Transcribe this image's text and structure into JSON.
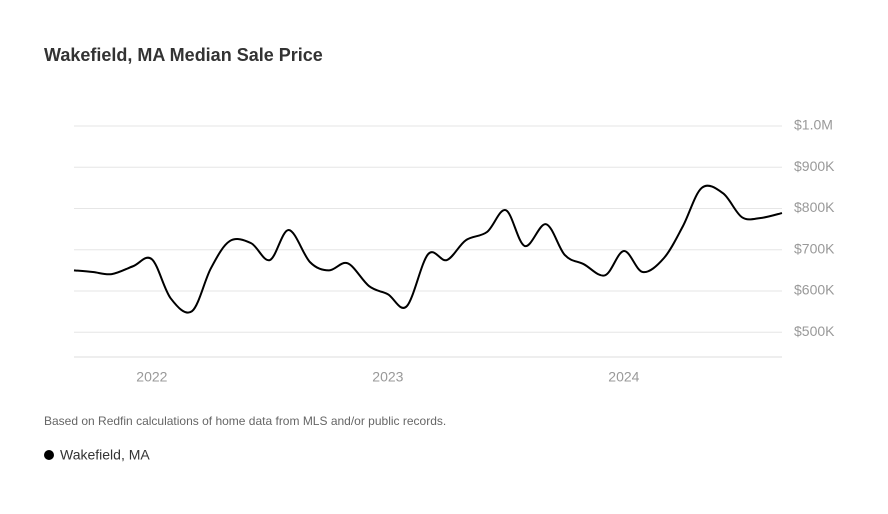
{
  "chart_data": {
    "type": "line",
    "title": "Wakefield, MA Median Sale Price",
    "note": "Based on Redfin calculations of home data from MLS and/or public records.",
    "x": [
      2021.67,
      2021.75,
      2021.83,
      2021.92,
      2022.0,
      2022.08,
      2022.17,
      2022.25,
      2022.33,
      2022.42,
      2022.5,
      2022.58,
      2022.67,
      2022.75,
      2022.83,
      2022.92,
      2023.0,
      2023.08,
      2023.17,
      2023.25,
      2023.33,
      2023.42,
      2023.5,
      2023.58,
      2023.67,
      2023.75,
      2023.83,
      2023.92,
      2024.0,
      2024.08,
      2024.17,
      2024.25,
      2024.33,
      2024.42,
      2024.5,
      2024.58,
      2024.67
    ],
    "series": [
      {
        "name": "Wakefield, MA",
        "color": "#000000",
        "values": [
          650000,
          646000,
          641000,
          660000,
          677000,
          582000,
          551000,
          655000,
          721000,
          716000,
          675000,
          748000,
          670000,
          650000,
          667000,
          612000,
          592000,
          563000,
          689000,
          675000,
          723000,
          743000,
          796000,
          709000,
          762000,
          687000,
          665000,
          638000,
          697000,
          646000,
          680000,
          757000,
          850000,
          837000,
          779000,
          777000,
          789000
        ]
      }
    ],
    "xlim": [
      2021.67,
      2024.67
    ],
    "xticks": [
      2022,
      2023,
      2024
    ],
    "ylim": [
      440000,
      1000000
    ],
    "yticks": [
      {
        "value": 500000,
        "label": "$500K"
      },
      {
        "value": 600000,
        "label": "$600K"
      },
      {
        "value": 700000,
        "label": "$700K"
      },
      {
        "value": 800000,
        "label": "$800K"
      },
      {
        "value": 900000,
        "label": "$900K"
      },
      {
        "value": 1000000,
        "label": "$1.0M"
      }
    ],
    "grid": true
  }
}
